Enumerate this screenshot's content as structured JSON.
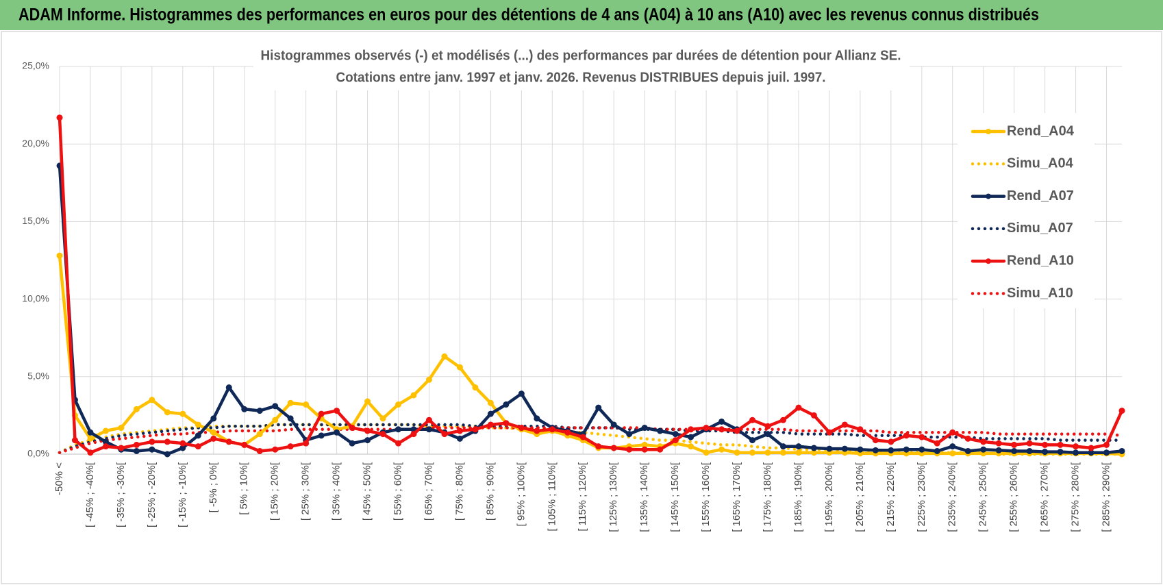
{
  "header": {
    "title": "ADAM Informe. Histogrammes des performances en euros pour des détentions de 4 ans (A04) à 10 ans (A10) avec les revenus connus distribués"
  },
  "chart_data": {
    "type": "line",
    "title": [
      "Histogrammes observés (-) et modélisés (...)  des performances par durées de détention pour Allianz SE.",
      "Cotations entre janv. 1997 et janv. 2026. Revenus DISTRIBUES depuis juil. 1997."
    ],
    "categories": [
      "-50% <",
      null,
      "[ -45% ; -40%[",
      null,
      "[ -35% ; -30%[",
      null,
      "[ -25% ; -20%[",
      null,
      "[ -15% ; -10%[",
      null,
      "[ -5% ; 0%[",
      null,
      "[ 5% ; 10%[",
      null,
      "[ 15% ; 20%[",
      null,
      "[ 25% ; 30%[",
      null,
      "[ 35% ; 40%[",
      null,
      "[ 45% ; 50%[",
      null,
      "[ 55% ; 60%[",
      null,
      "[ 65% ; 70%[",
      null,
      "[ 75% ; 80%[",
      null,
      "[ 85% ; 90%[",
      null,
      "[ 95% ; 100%[",
      null,
      "[ 105% ; 110%[",
      null,
      "[ 115% ; 120%[",
      null,
      "[ 125% ; 130%[",
      null,
      "[ 135% ; 140%[",
      null,
      "[ 145% ; 150%[",
      null,
      "[ 155% ; 160%[",
      null,
      "[ 165% ; 170%[",
      null,
      "[ 175% ; 180%[",
      null,
      "[ 185% ; 190%[",
      null,
      "[ 195% ; 200%[",
      null,
      "[ 205% ; 210%[",
      null,
      "[ 215% ; 220%[",
      null,
      "[ 225% ; 230%[",
      null,
      "[ 235% ; 240%[",
      null,
      "[ 245% ; 250%[",
      null,
      "[ 255% ; 260%[",
      null,
      "[ 265% ; 270%[",
      null,
      "[ 275% ; 280%[",
      null,
      "[ 285% ; 290%[",
      null
    ],
    "ylim": [
      0,
      25
    ],
    "yticks": [
      {
        "value": 0,
        "label": "0,0%"
      },
      {
        "value": 5,
        "label": "5,0%"
      },
      {
        "value": 10,
        "label": "10,0%"
      },
      {
        "value": 15,
        "label": "15,0%"
      },
      {
        "value": 20,
        "label": "20,0%"
      },
      {
        "value": 25,
        "label": "25,0%"
      }
    ],
    "grid": true,
    "legend": "right",
    "series": [
      {
        "name": "Rend_A04",
        "color": "#ffc000",
        "style": "solid",
        "markers": true,
        "values": [
          12.8,
          2.5,
          1.0,
          1.5,
          1.7,
          2.9,
          3.5,
          2.7,
          2.6,
          1.9,
          1.4,
          0.8,
          0.6,
          1.3,
          2.2,
          3.3,
          3.2,
          2.3,
          1.6,
          1.8,
          3.4,
          2.3,
          3.2,
          3.8,
          4.8,
          6.3,
          5.6,
          4.3,
          3.3,
          2.0,
          1.6,
          1.3,
          1.5,
          1.2,
          0.9,
          0.4,
          0.4,
          0.5,
          0.6,
          0.5,
          0.7,
          0.5,
          0.1,
          0.3,
          0.1,
          0.1,
          0.1,
          0.1,
          0.1,
          0.1,
          0.1,
          0.1,
          0.05,
          0.05,
          0.05,
          0.05,
          0.05,
          0.05,
          0.05,
          0.05,
          0.05,
          0.05,
          0.05,
          0.05,
          0.05,
          0.05,
          0.05,
          0.05,
          0.05,
          0
        ]
      },
      {
        "name": "Simu_A04",
        "color": "#ffc000",
        "style": "dotted",
        "markers": false,
        "values": [
          0.1,
          0.6,
          0.9,
          1.1,
          1.3,
          1.4,
          1.5,
          1.6,
          1.7,
          1.7,
          1.8,
          1.8,
          1.8,
          1.8,
          1.9,
          1.9,
          1.9,
          1.9,
          1.9,
          1.9,
          1.9,
          1.9,
          1.9,
          1.9,
          1.8,
          1.8,
          1.8,
          1.8,
          1.7,
          1.7,
          1.6,
          1.6,
          1.5,
          1.4,
          1.4,
          1.3,
          1.2,
          1.1,
          1.0,
          0.9,
          0.9,
          0.8,
          0.7,
          0.6,
          0.6,
          0.5,
          0.4,
          0.4,
          0.3,
          0.3,
          0.3,
          0.2,
          0.2,
          0.2,
          0.1,
          0.1,
          0.1,
          0.1,
          0.1,
          0.1,
          0.1,
          0,
          0,
          0,
          0,
          0,
          0,
          0,
          0,
          0
        ]
      },
      {
        "name": "Rend_A07",
        "color": "#0f2857",
        "style": "solid",
        "markers": true,
        "values": [
          18.6,
          3.5,
          1.4,
          0.8,
          0.3,
          0.2,
          0.3,
          0.0,
          0.4,
          1.2,
          2.3,
          4.3,
          2.9,
          2.8,
          3.1,
          2.3,
          0.9,
          1.2,
          1.4,
          0.7,
          0.9,
          1.4,
          1.6,
          1.6,
          1.6,
          1.4,
          1.0,
          1.5,
          2.6,
          3.2,
          3.9,
          2.3,
          1.7,
          1.5,
          1.3,
          3.0,
          1.9,
          1.3,
          1.7,
          1.5,
          1.3,
          1.1,
          1.6,
          2.1,
          1.6,
          0.9,
          1.3,
          0.5,
          0.5,
          0.4,
          0.35,
          0.35,
          0.3,
          0.25,
          0.25,
          0.3,
          0.3,
          0.2,
          0.5,
          0.2,
          0.3,
          0.25,
          0.2,
          0.2,
          0.15,
          0.15,
          0.1,
          0.1,
          0.1,
          0.2
        ]
      },
      {
        "name": "Simu_A07",
        "color": "#0f2857",
        "style": "dotted",
        "markers": false,
        "values": [
          0.1,
          0.5,
          0.8,
          1.0,
          1.2,
          1.3,
          1.4,
          1.5,
          1.6,
          1.7,
          1.7,
          1.8,
          1.8,
          1.8,
          1.9,
          1.9,
          1.9,
          1.9,
          1.9,
          1.9,
          1.9,
          1.9,
          1.9,
          1.9,
          1.9,
          1.9,
          1.9,
          1.8,
          1.8,
          1.8,
          1.8,
          1.8,
          1.8,
          1.7,
          1.7,
          1.7,
          1.7,
          1.6,
          1.6,
          1.6,
          1.6,
          1.5,
          1.5,
          1.5,
          1.4,
          1.4,
          1.4,
          1.4,
          1.3,
          1.3,
          1.3,
          1.3,
          1.2,
          1.2,
          1.2,
          1.2,
          1.1,
          1.1,
          1.1,
          1.1,
          1.0,
          1.0,
          1.0,
          1.0,
          1.0,
          0.9,
          0.9,
          0.9,
          0.9,
          0.9
        ]
      },
      {
        "name": "Rend_A10",
        "color": "#ee1111",
        "style": "solid",
        "markers": true,
        "values": [
          21.7,
          0.9,
          0.1,
          0.5,
          0.4,
          0.6,
          0.8,
          0.8,
          0.7,
          0.5,
          1.0,
          0.8,
          0.6,
          0.2,
          0.3,
          0.5,
          0.7,
          2.6,
          2.8,
          1.7,
          1.5,
          1.3,
          0.7,
          1.3,
          2.2,
          1.3,
          1.5,
          1.6,
          1.9,
          2.0,
          1.7,
          1.5,
          1.6,
          1.4,
          1.1,
          0.5,
          0.4,
          0.3,
          0.3,
          0.3,
          0.9,
          1.6,
          1.7,
          1.6,
          1.5,
          2.2,
          1.8,
          2.2,
          3.0,
          2.5,
          1.4,
          1.9,
          1.6,
          0.9,
          0.8,
          1.2,
          1.1,
          0.7,
          1.4,
          1.0,
          0.8,
          0.7,
          0.6,
          0.7,
          0.6,
          0.6,
          0.5,
          0.4,
          0.6,
          2.8
        ]
      },
      {
        "name": "Simu_A10",
        "color": "#ee1111",
        "style": "dotted",
        "markers": false,
        "values": [
          0.1,
          0.4,
          0.7,
          0.9,
          1.0,
          1.1,
          1.2,
          1.3,
          1.3,
          1.4,
          1.4,
          1.5,
          1.5,
          1.5,
          1.5,
          1.6,
          1.6,
          1.6,
          1.6,
          1.6,
          1.6,
          1.6,
          1.6,
          1.6,
          1.7,
          1.7,
          1.7,
          1.7,
          1.7,
          1.7,
          1.7,
          1.7,
          1.7,
          1.7,
          1.7,
          1.7,
          1.7,
          1.7,
          1.7,
          1.6,
          1.6,
          1.6,
          1.6,
          1.6,
          1.6,
          1.6,
          1.6,
          1.6,
          1.5,
          1.5,
          1.5,
          1.5,
          1.5,
          1.5,
          1.4,
          1.4,
          1.4,
          1.4,
          1.4,
          1.4,
          1.4,
          1.3,
          1.3,
          1.3,
          1.3,
          1.3,
          1.3,
          1.3,
          1.3,
          1.2
        ]
      }
    ]
  }
}
